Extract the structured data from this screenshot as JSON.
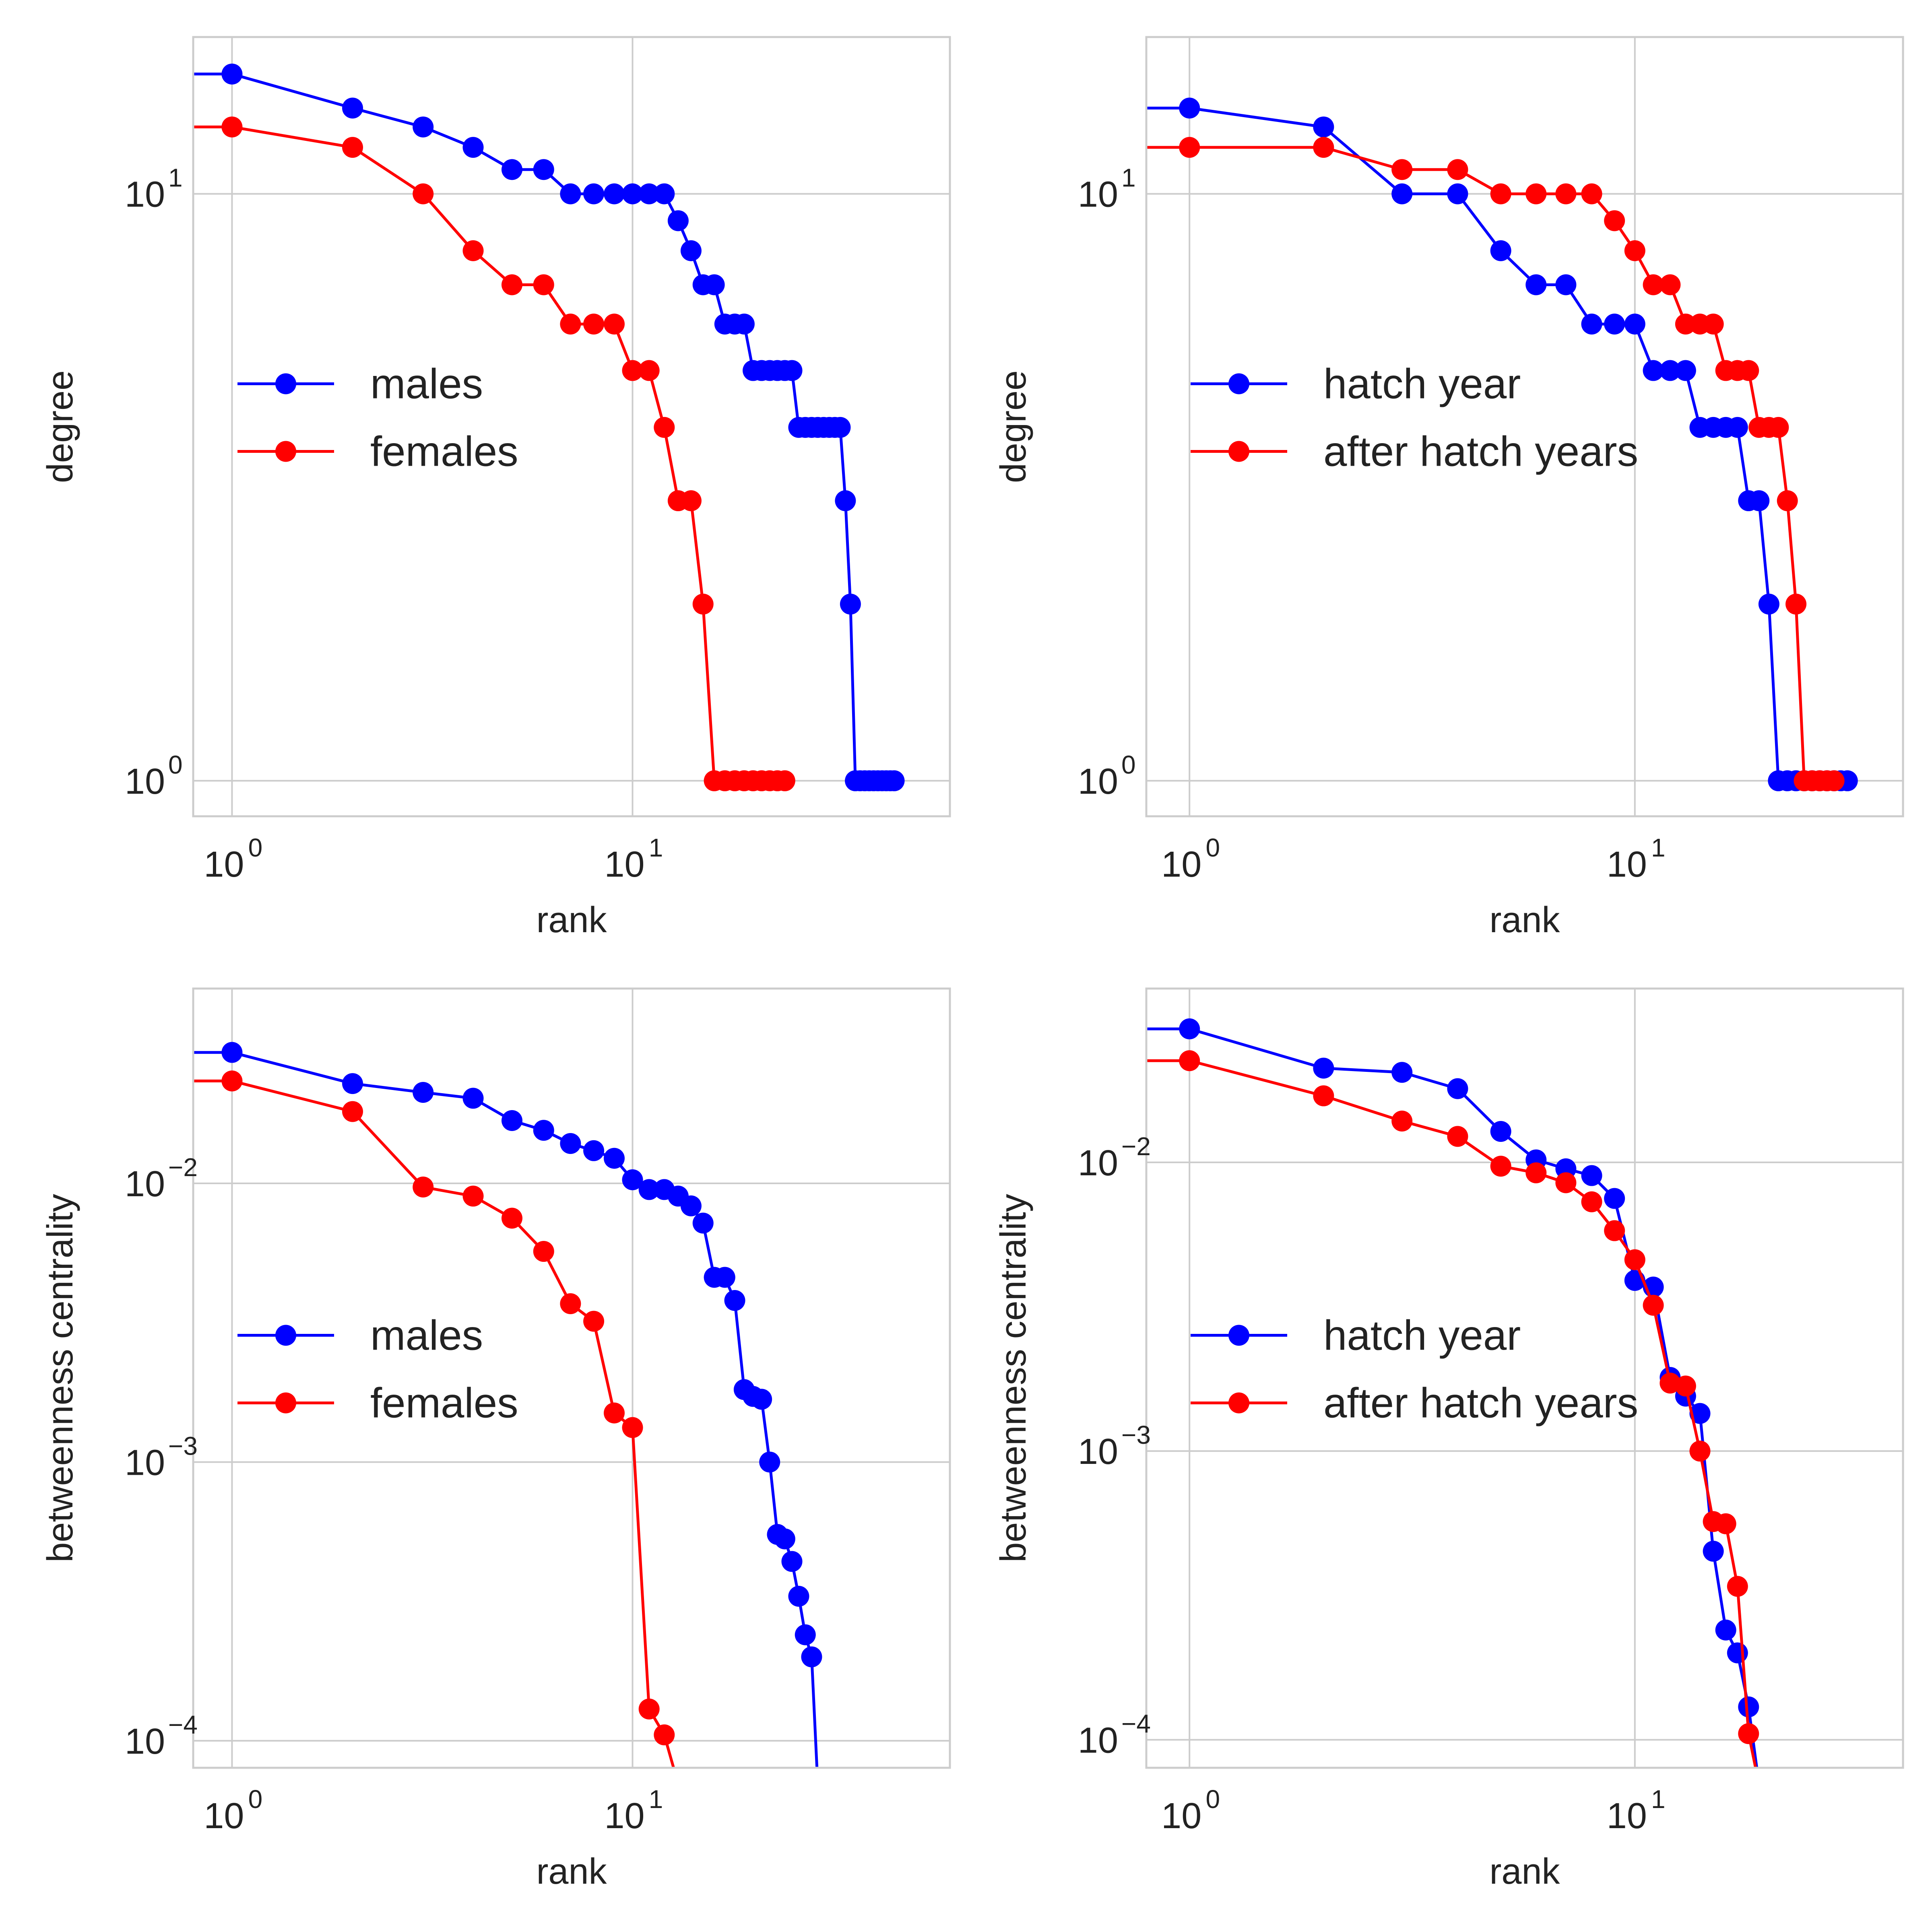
{
  "colors": {
    "males": "#0000ff",
    "females": "#ff0000",
    "hatch_year": "#0000ff",
    "after_hatch": "#ff0000",
    "grid": "#cccccc",
    "frame": "#cccccc"
  },
  "chart_data": [
    {
      "type": "line",
      "xscale": "log",
      "yscale": "log",
      "xlabel": "rank",
      "ylabel": "degree",
      "xlim": [
        0.8,
        62
      ],
      "ylim": [
        0.87,
        18.5
      ],
      "xticks": [
        {
          "value": 1,
          "base": "10",
          "exp": "0"
        },
        {
          "value": 10,
          "base": "10",
          "exp": "1"
        }
      ],
      "yticks": [
        {
          "value": 1,
          "base": "10",
          "exp": "0"
        },
        {
          "value": 10,
          "base": "10",
          "exp": "1"
        }
      ],
      "grid": true,
      "legend": "center-left",
      "series": [
        {
          "name": "males",
          "color": "#0000ff",
          "x": [
            1,
            2,
            3,
            4,
            5,
            6,
            7,
            8,
            9,
            10,
            11,
            12,
            13,
            14,
            15,
            16,
            17,
            18,
            19,
            20,
            21,
            22,
            23,
            24,
            25,
            26,
            27,
            28,
            29,
            30,
            31,
            32,
            33,
            34,
            35,
            36,
            37,
            38,
            39,
            40,
            41,
            42,
            43,
            44,
            45
          ],
          "y": [
            16,
            14,
            13,
            12,
            11,
            11,
            10,
            10,
            10,
            10,
            10,
            10,
            9,
            8,
            7,
            7,
            6,
            6,
            6,
            5,
            5,
            5,
            5,
            5,
            5,
            4,
            4,
            4,
            4,
            4,
            4,
            4,
            4,
            3,
            2,
            1,
            1,
            1,
            1,
            1,
            1,
            1,
            1,
            1,
            1
          ]
        },
        {
          "name": "females",
          "color": "#ff0000",
          "x": [
            1,
            2,
            3,
            4,
            5,
            6,
            7,
            8,
            9,
            10,
            11,
            12,
            13,
            14,
            15,
            16,
            17,
            18,
            19,
            20,
            21,
            22,
            23,
            24
          ],
          "y": [
            13,
            12,
            10,
            8,
            7,
            7,
            6,
            6,
            6,
            5,
            5,
            4,
            3,
            3,
            2,
            1,
            1,
            1,
            1,
            1,
            1,
            1,
            1,
            1
          ]
        }
      ]
    },
    {
      "type": "line",
      "xscale": "log",
      "yscale": "log",
      "xlabel": "rank",
      "ylabel": "degree",
      "xlim": [
        0.8,
        40
      ],
      "ylim": [
        0.87,
        18.5
      ],
      "xticks": [
        {
          "value": 1,
          "base": "10",
          "exp": "0"
        },
        {
          "value": 10,
          "base": "10",
          "exp": "1"
        }
      ],
      "yticks": [
        {
          "value": 1,
          "base": "10",
          "exp": "0"
        },
        {
          "value": 10,
          "base": "10",
          "exp": "1"
        }
      ],
      "grid": true,
      "legend": "center-left",
      "series": [
        {
          "name": "hatch year",
          "color": "#0000ff",
          "x": [
            1,
            2,
            3,
            4,
            5,
            6,
            7,
            8,
            9,
            10,
            11,
            12,
            13,
            14,
            15,
            16,
            17,
            18,
            19,
            20,
            21,
            22,
            23,
            24,
            25,
            26,
            27,
            28,
            29,
            30
          ],
          "y": [
            14,
            13,
            10,
            10,
            8,
            7,
            7,
            6,
            6,
            6,
            5,
            5,
            5,
            4,
            4,
            4,
            4,
            3,
            3,
            2,
            1,
            1,
            1,
            1,
            1,
            1,
            1,
            1,
            1,
            1
          ]
        },
        {
          "name": "after hatch years",
          "color": "#ff0000",
          "x": [
            1,
            2,
            3,
            4,
            5,
            6,
            7,
            8,
            9,
            10,
            11,
            12,
            13,
            14,
            15,
            16,
            17,
            18,
            19,
            20,
            21,
            22,
            23,
            24,
            25,
            26,
            27,
            28
          ],
          "y": [
            12,
            12,
            11,
            11,
            10,
            10,
            10,
            10,
            9,
            8,
            7,
            7,
            6,
            6,
            6,
            5,
            5,
            5,
            4,
            4,
            4,
            3,
            2,
            1,
            1,
            1,
            1,
            1
          ]
        }
      ]
    },
    {
      "type": "line",
      "xscale": "log",
      "yscale": "log",
      "xlabel": "rank",
      "ylabel": "betweenness centrality",
      "xlim": [
        0.8,
        62
      ],
      "ylim": [
        8e-05,
        0.05
      ],
      "xticks": [
        {
          "value": 1,
          "base": "10",
          "exp": "0"
        },
        {
          "value": 10,
          "base": "10",
          "exp": "1"
        }
      ],
      "yticks": [
        {
          "value": 0.0001,
          "base": "10",
          "exp": "−4"
        },
        {
          "value": 0.001,
          "base": "10",
          "exp": "−3"
        },
        {
          "value": 0.01,
          "base": "10",
          "exp": "−2"
        }
      ],
      "grid": true,
      "legend": "center-left",
      "series": [
        {
          "name": "males",
          "color": "#0000ff",
          "x": [
            1,
            2,
            3,
            4,
            5,
            6,
            7,
            8,
            9,
            10,
            11,
            12,
            13,
            14,
            15,
            16,
            17,
            18,
            19,
            20,
            21,
            22,
            23,
            24,
            25,
            26,
            27,
            28,
            29
          ],
          "y": [
            0.0295,
            0.0228,
            0.0212,
            0.0202,
            0.0168,
            0.0155,
            0.0139,
            0.0131,
            0.0123,
            0.0103,
            0.0095,
            0.0095,
            0.009,
            0.0083,
            0.0072,
            0.0046,
            0.0046,
            0.0038,
            0.00182,
            0.00172,
            0.00168,
            0.001,
            0.00055,
            0.00053,
            0.00044,
            0.00033,
            0.00024,
            0.0002,
            7e-05
          ]
        },
        {
          "name": "females",
          "color": "#ff0000",
          "x": [
            1,
            2,
            3,
            4,
            5,
            6,
            7,
            8,
            9,
            10,
            11,
            12,
            13
          ],
          "y": [
            0.0233,
            0.0181,
            0.0097,
            0.009,
            0.0075,
            0.0057,
            0.0037,
            0.0032,
            0.0015,
            0.00133,
            0.00013,
            0.000105,
            7e-05
          ]
        }
      ]
    },
    {
      "type": "line",
      "xscale": "log",
      "yscale": "log",
      "xlabel": "rank",
      "ylabel": "betweenness centrality",
      "xlim": [
        0.8,
        40
      ],
      "ylim": [
        8e-05,
        0.04
      ],
      "xticks": [
        {
          "value": 1,
          "base": "10",
          "exp": "0"
        },
        {
          "value": 10,
          "base": "10",
          "exp": "1"
        }
      ],
      "yticks": [
        {
          "value": 0.0001,
          "base": "10",
          "exp": "−4"
        },
        {
          "value": 0.001,
          "base": "10",
          "exp": "−3"
        },
        {
          "value": 0.01,
          "base": "10",
          "exp": "−2"
        }
      ],
      "grid": true,
      "legend": "center-left",
      "series": [
        {
          "name": "hatch year",
          "color": "#0000ff",
          "x": [
            1,
            2,
            3,
            4,
            5,
            6,
            7,
            8,
            9,
            10,
            11,
            12,
            13,
            14,
            15,
            16,
            17,
            18,
            19
          ],
          "y": [
            0.029,
            0.0212,
            0.0205,
            0.018,
            0.0128,
            0.0102,
            0.0095,
            0.009,
            0.0075,
            0.0039,
            0.0037,
            0.0018,
            0.00155,
            0.00135,
            0.00045,
            0.00024,
            0.0002,
            0.00013,
            7e-05
          ]
        },
        {
          "name": "after hatch years",
          "color": "#ff0000",
          "x": [
            1,
            2,
            3,
            4,
            5,
            6,
            7,
            8,
            9,
            10,
            11,
            12,
            13,
            14,
            15,
            16,
            17,
            18,
            19
          ],
          "y": [
            0.0225,
            0.017,
            0.0139,
            0.0123,
            0.0097,
            0.0092,
            0.0085,
            0.0073,
            0.0058,
            0.0046,
            0.0032,
            0.00172,
            0.00168,
            0.001,
            0.00057,
            0.00056,
            0.00034,
            0.000105,
            7e-05
          ]
        }
      ]
    }
  ]
}
